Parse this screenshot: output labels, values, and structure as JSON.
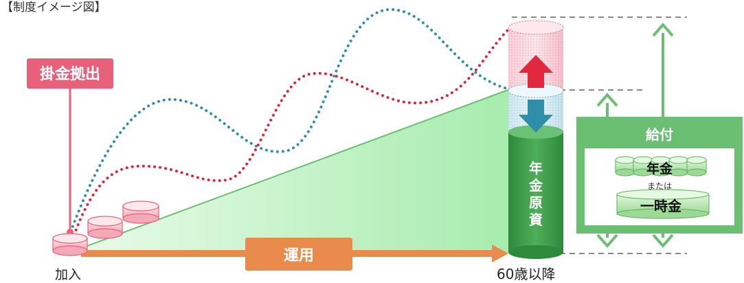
{
  "title": "【制度イメージ図】",
  "labels": {
    "contribution": "掛金拠出",
    "enroll": "加入",
    "operation": "運用",
    "age": "60歳以降",
    "fund": [
      "年",
      "金",
      "原",
      "資"
    ],
    "benefit": "給付",
    "pension": "年金",
    "or": "または",
    "lump_sum": "一時金"
  },
  "colors": {
    "red_accent": "#e8607a",
    "red_dotted": "#d9283e",
    "blue_dotted": "#2d8fa8",
    "green_dark": "#3e9a4a",
    "green_mid": "#6bbf73",
    "green_light": "#c8f0c9",
    "orange": "#e98b4d",
    "pink_coin": "#f6b5c0",
    "green_coin": "#b8e8b3",
    "arrow_up": "#e0283e",
    "arrow_down": "#2f8ea8"
  }
}
